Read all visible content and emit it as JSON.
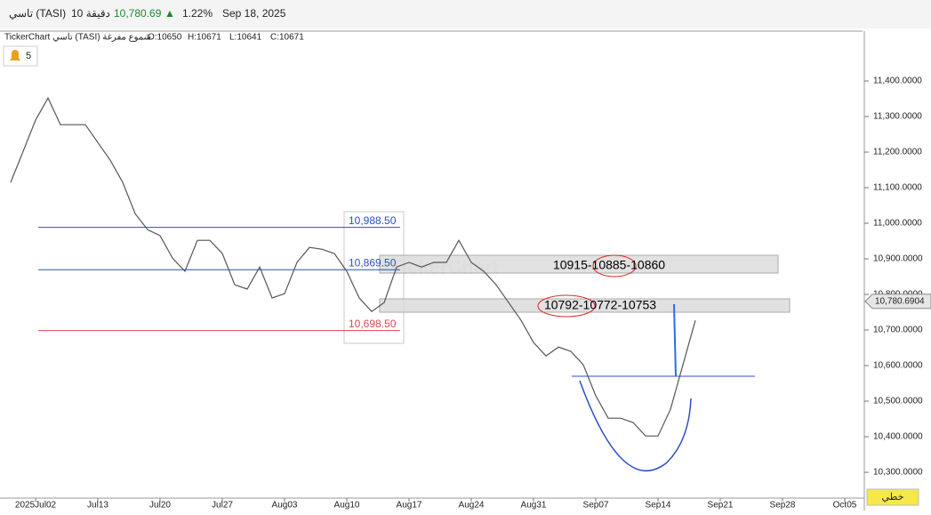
{
  "header": {
    "symbol": "تاسي (TASI)",
    "interval": "10 دقيقة",
    "price": "10,780.69",
    "arrow": "▲",
    "change": "1.22%",
    "date": "Sep 18, 2025"
  },
  "legend": {
    "title": "TickerChart تاسي (TASI) شموع مفرغة",
    "open": "O:10650",
    "high": "H:10671",
    "low": "L:10641",
    "close": "C:10671"
  },
  "alerts": {
    "count": "5"
  },
  "watermark": "TickerChart",
  "chart_mode": "خطي",
  "chart_data": {
    "type": "line",
    "categories": [
      null,
      null,
      "2025Jul02",
      null,
      null,
      null,
      null,
      "Jul13",
      null,
      null,
      null,
      null,
      "Jul20",
      null,
      null,
      null,
      null,
      "Jul27",
      null,
      null,
      null,
      null,
      "Aug03",
      null,
      null,
      null,
      null,
      "Aug10",
      null,
      null,
      null,
      null,
      "Aug17",
      null,
      null,
      null,
      null,
      "Aug24",
      null,
      null,
      null,
      null,
      "Aug31",
      null,
      null,
      null,
      null,
      "Sep07",
      null,
      null,
      null,
      null,
      "Sep14",
      null,
      null,
      null,
      null,
      "Sep21",
      null,
      null,
      null,
      null,
      "Sep28",
      null,
      null,
      null,
      null,
      "Oct05"
    ],
    "series": [
      {
        "name": "TASI",
        "color": "#555555",
        "values": [
          11115,
          11202,
          11290,
          11352,
          11277,
          11277,
          11277,
          11227,
          11177,
          11115,
          11027,
          10982,
          10965,
          10902,
          10865,
          10952,
          10952,
          10915,
          10827,
          10815,
          10877,
          10790,
          10802,
          10890,
          10932,
          10927,
          10915,
          10865,
          10790,
          10752,
          10777,
          10877,
          10890,
          10877,
          10890,
          10890,
          10952,
          10890,
          10865,
          10827,
          10777,
          10727,
          10665,
          10627,
          10652,
          10640,
          10602,
          10515,
          10452,
          10452,
          10440,
          10402,
          10402,
          10477,
          10602,
          10727,
          null,
          null,
          null,
          null,
          null,
          null,
          null,
          null,
          null,
          null,
          null,
          null
        ]
      }
    ],
    "ylim": [
      10227.5,
      11507.5
    ],
    "yticks": [
      {
        "value": 10300,
        "label": "10,300.0000"
      },
      {
        "value": 10400,
        "label": "10,400.0000"
      },
      {
        "value": 10500,
        "label": "10,500.0000"
      },
      {
        "value": 10600,
        "label": "10,600.0000"
      },
      {
        "value": 10700,
        "label": "10,700.0000"
      },
      {
        "value": 10800,
        "label": "10,800.0000"
      },
      {
        "value": 10900,
        "label": "10,900.0000"
      },
      {
        "value": 11000,
        "label": "11,000.0000"
      },
      {
        "value": 11100,
        "label": "11,100.0000"
      },
      {
        "value": 11200,
        "label": "11,200.0000"
      },
      {
        "value": 11300,
        "label": "11,300.0000"
      },
      {
        "value": 11400,
        "label": "11,400.0000"
      }
    ],
    "last_price": {
      "value": 10780.6904,
      "label": "10,780.6904"
    },
    "levels": [
      {
        "value": 10988.5,
        "label": "10,988.50",
        "color": "#2b4fc7"
      },
      {
        "value": 10869.5,
        "label": "10,869.50",
        "color": "#2b4fc7"
      },
      {
        "value": 10698.5,
        "label": "10,698.50",
        "color": "#e0434f"
      }
    ],
    "zones": [
      "10915-10885-10860",
      "10792-10772-10753"
    ]
  }
}
